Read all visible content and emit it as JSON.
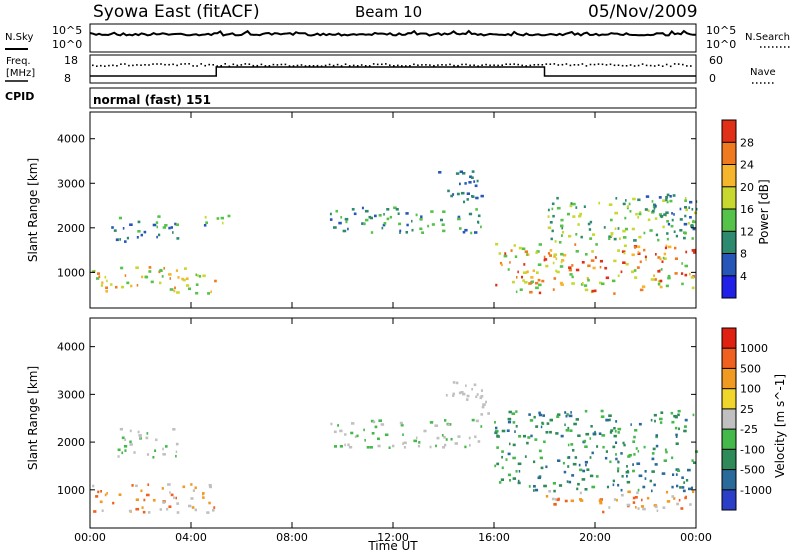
{
  "header": {
    "title": "Syowa East (fitACF)",
    "beam": "Beam 10",
    "date": "05/Nov/2009"
  },
  "noise_panel": {
    "left_label": "N.Sky",
    "left_ticks": [
      "10^5",
      "10^0"
    ],
    "right_ticks": [
      "10^5",
      "10^0"
    ],
    "right_label": "N.Search"
  },
  "freq_panel": {
    "left_label_1": "Freq.",
    "left_label_2": "[MHz]",
    "left_ticks": [
      "18",
      "8"
    ],
    "right_ticks": [
      "60",
      "0"
    ],
    "right_label": "Nave"
  },
  "cpid": {
    "label": "CPID",
    "value": "normal (fast) 151"
  },
  "chart_data": [
    {
      "type": "heatmap",
      "ylabel": "Slant Range [km]",
      "xlabel": "",
      "y_ticks": [
        1000,
        2000,
        3000,
        4000
      ],
      "ylim": [
        200,
        4600
      ],
      "xlim": [
        0,
        24
      ],
      "colorbar_title": "Power [dB]",
      "colorbar_ticks": [
        "4",
        "8",
        "12",
        "16",
        "20",
        "24",
        "28"
      ],
      "colors": [
        "#2020e8",
        "#2656b8",
        "#2e8a6e",
        "#55c24a",
        "#c8d830",
        "#f5b52c",
        "#f07a20",
        "#e03018"
      ],
      "regions": [
        {
          "t": [
            0.0,
            5.0
          ],
          "r": [
            550,
            1150
          ],
          "c": [
            5,
            6,
            4,
            3
          ]
        },
        {
          "t": [
            0.8,
            3.5
          ],
          "r": [
            1700,
            2300
          ],
          "c": [
            1,
            2,
            3
          ]
        },
        {
          "t": [
            4.5,
            5.5
          ],
          "r": [
            2000,
            2400
          ],
          "c": [
            1,
            3,
            4
          ]
        },
        {
          "t": [
            9.5,
            15.5
          ],
          "r": [
            1900,
            2500
          ],
          "c": [
            1,
            2,
            3
          ]
        },
        {
          "t": [
            13.5,
            15.5
          ],
          "r": [
            2600,
            3300
          ],
          "c": [
            1,
            2
          ]
        },
        {
          "t": [
            16.0,
            24.0
          ],
          "r": [
            550,
            1700
          ],
          "c": [
            7,
            6,
            5,
            4,
            3
          ]
        },
        {
          "t": [
            18.0,
            24.0
          ],
          "r": [
            1700,
            2700
          ],
          "c": [
            3,
            4,
            2
          ]
        },
        {
          "t": [
            22.0,
            24.0
          ],
          "r": [
            2000,
            2800
          ],
          "c": [
            1,
            2
          ]
        }
      ]
    },
    {
      "type": "heatmap",
      "ylabel": "Slant Range [km]",
      "xlabel": "Time UT",
      "x_ticks": [
        "00:00",
        "04:00",
        "08:00",
        "12:00",
        "16:00",
        "20:00",
        "00:00"
      ],
      "y_ticks": [
        1000,
        2000,
        3000,
        4000
      ],
      "ylim": [
        200,
        4600
      ],
      "xlim": [
        0,
        24
      ],
      "colorbar_title": "Velocity [m s^-1]",
      "colorbar_ticks": [
        "1000",
        "500",
        "100",
        "25",
        "-25",
        "-100",
        "-500",
        "-1000"
      ],
      "colors": [
        "#2a3ec8",
        "#2a6a9a",
        "#2e8a58",
        "#44b84a",
        "#c0c0c0",
        "#f0d62a",
        "#f09a22",
        "#f06020",
        "#e02010"
      ],
      "regions": [
        {
          "t": [
            0.0,
            5.0
          ],
          "r": [
            550,
            1150
          ],
          "c": [
            6,
            7,
            4
          ]
        },
        {
          "t": [
            0.8,
            3.5
          ],
          "r": [
            1700,
            2300
          ],
          "c": [
            4,
            4,
            3
          ]
        },
        {
          "t": [
            9.5,
            15.5
          ],
          "r": [
            1900,
            2500
          ],
          "c": [
            4,
            3
          ]
        },
        {
          "t": [
            14.0,
            15.8
          ],
          "r": [
            2600,
            3300
          ],
          "c": [
            4
          ]
        },
        {
          "t": [
            16.0,
            24.0
          ],
          "r": [
            1000,
            2700
          ],
          "c": [
            2,
            3,
            1
          ]
        },
        {
          "t": [
            18.0,
            24.0
          ],
          "r": [
            550,
            1000
          ],
          "c": [
            6,
            7,
            4
          ]
        }
      ]
    }
  ]
}
